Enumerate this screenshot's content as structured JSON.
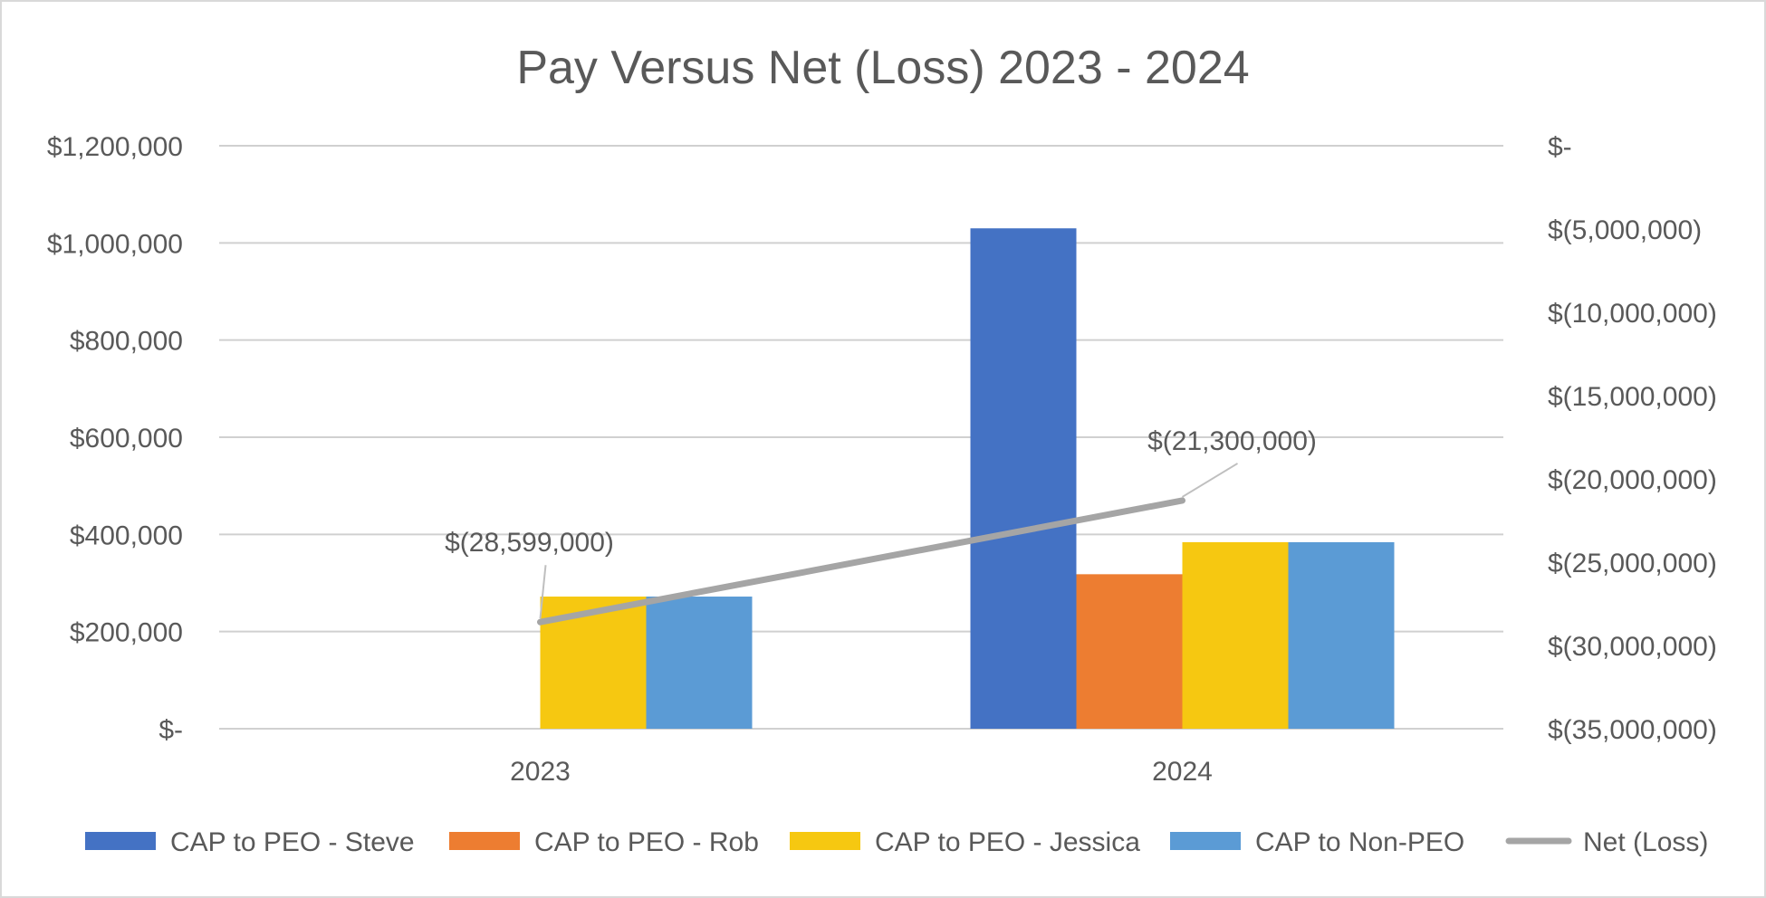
{
  "chart_data": {
    "type": "bar",
    "title": "Pay Versus Net (Loss) 2023 - 2024",
    "categories": [
      "2023",
      "2024"
    ],
    "series": [
      {
        "name": "CAP to PEO - Steve",
        "type": "bar",
        "axis": "left",
        "color": "#4472c4",
        "values": [
          0,
          1030000
        ]
      },
      {
        "name": "CAP to PEO - Rob",
        "type": "bar",
        "axis": "left",
        "color": "#ed7d31",
        "values": [
          0,
          318000
        ]
      },
      {
        "name": "CAP to PEO - Jessica",
        "type": "bar",
        "axis": "left",
        "color": "#f6c811",
        "values": [
          272000,
          384000
        ]
      },
      {
        "name": "CAP to Non-PEO",
        "type": "bar",
        "axis": "left",
        "color": "#5b9bd5",
        "values": [
          272000,
          384000
        ]
      },
      {
        "name": "Net (Loss)",
        "type": "line",
        "axis": "right",
        "color": "#a5a5a5",
        "values": [
          -28599000,
          -21300000
        ],
        "labels": [
          "$(28,599,000)",
          "$(21,300,000)"
        ]
      }
    ],
    "left_axis": {
      "ylim": [
        0,
        1200000
      ],
      "ticks": [
        0,
        200000,
        400000,
        600000,
        800000,
        1000000,
        1200000
      ],
      "tick_labels": [
        "$-",
        "$200,000",
        "$400,000",
        "$600,000",
        "$800,000",
        "$1,000,000",
        "$1,200,000"
      ]
    },
    "right_axis": {
      "ylim": [
        -35000000,
        0
      ],
      "ticks": [
        0,
        -5000000,
        -10000000,
        -15000000,
        -20000000,
        -25000000,
        -30000000,
        -35000000
      ],
      "tick_labels": [
        "$-",
        "$(5,000,000)",
        "$(10,000,000)",
        "$(15,000,000)",
        "$(20,000,000)",
        "$(25,000,000)",
        "$(30,000,000)",
        "$(35,000,000)"
      ]
    },
    "grid": true,
    "legend_position": "bottom"
  }
}
